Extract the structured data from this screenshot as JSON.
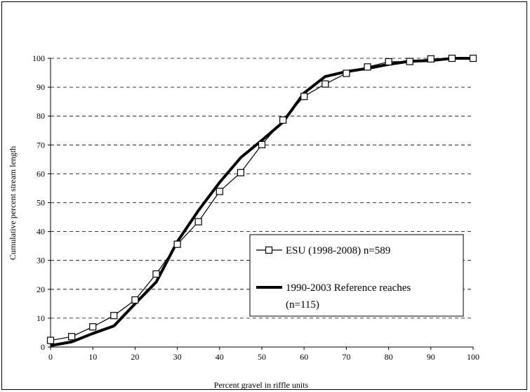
{
  "chart_data": {
    "type": "line",
    "title": "",
    "xlabel": "Percent gravel in riffle units",
    "ylabel": "Cumulative percent stream length",
    "xlim": [
      0,
      100
    ],
    "ylim": [
      0,
      100
    ],
    "xticks": [
      0,
      10,
      20,
      30,
      40,
      50,
      60,
      70,
      80,
      90,
      100
    ],
    "yticks": [
      0,
      10,
      20,
      30,
      40,
      50,
      60,
      70,
      80,
      90,
      100
    ],
    "grid": "horizontal-dashed",
    "legend_placement": "lower-right",
    "series": [
      {
        "name": "ESU (1998-2008) n=589",
        "style": "thin-line-square-markers",
        "x": [
          0,
          5,
          10,
          15,
          20,
          25,
          30,
          35,
          40,
          45,
          50,
          55,
          60,
          65,
          70,
          75,
          80,
          85,
          90,
          95,
          100
        ],
        "y": [
          2.3,
          3.6,
          7.0,
          10.9,
          16.3,
          25.3,
          35.6,
          43.4,
          53.9,
          60.4,
          70.1,
          78.6,
          86.8,
          91.1,
          94.8,
          97.0,
          98.8,
          98.9,
          99.8,
          100,
          100
        ]
      },
      {
        "name": "1990-2003 Reference reaches (n=115)",
        "style": "thick-line",
        "x": [
          0,
          5,
          10,
          15,
          20,
          25,
          30,
          35,
          40,
          45,
          50,
          55,
          60,
          65,
          70,
          75,
          80,
          85,
          90,
          95,
          100
        ],
        "y": [
          0.5,
          1.8,
          4.7,
          7.3,
          15.0,
          22.5,
          36.5,
          47.3,
          57.0,
          65.6,
          71.6,
          77.9,
          88.0,
          93.7,
          95.4,
          96.5,
          97.9,
          99.0,
          99.2,
          100,
          100
        ]
      }
    ],
    "legend": {
      "entries": [
        {
          "label": "ESU (1998-2008) n=589"
        },
        {
          "label_line1": "1990-2003 Reference reaches",
          "label_line2": "(n=115)"
        }
      ]
    }
  }
}
